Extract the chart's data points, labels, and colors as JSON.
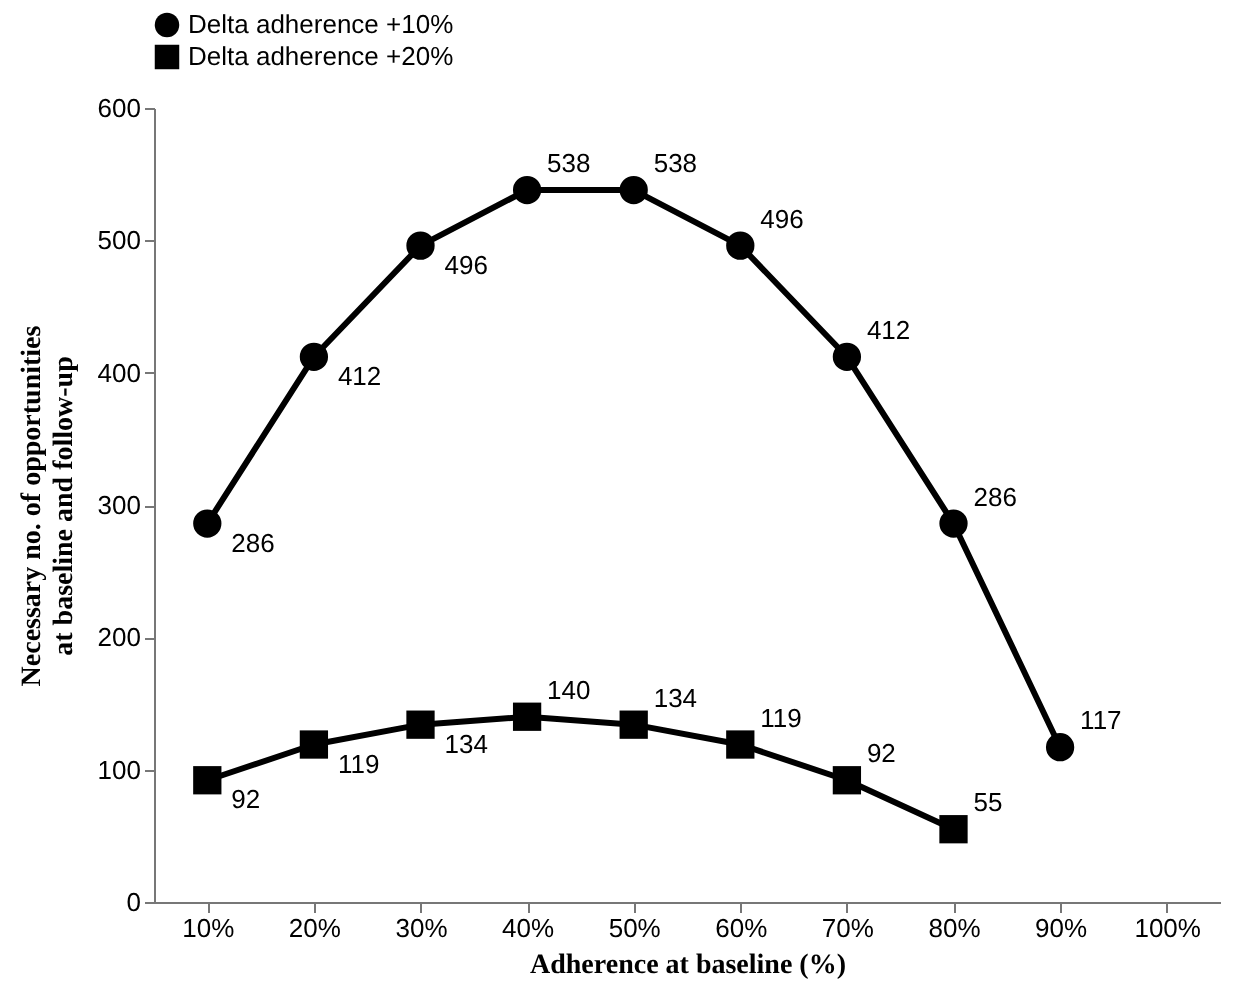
{
  "chart_data": {
    "type": "line",
    "xlabel": "Adherence at baseline (%)",
    "ylabel": "Necessary no. of opportunities\nat baseline and follow-up",
    "categories": [
      "10%",
      "20%",
      "30%",
      "40%",
      "50%",
      "60%",
      "70%",
      "80%",
      "90%",
      "100%"
    ],
    "series": [
      {
        "name": "Delta adherence +10%",
        "color": "#000000",
        "marker": "circle",
        "values": [
          286,
          412,
          496,
          538,
          538,
          496,
          412,
          286,
          117,
          null
        ]
      },
      {
        "name": "Delta adherence +20%",
        "color": "#000000",
        "marker": "square",
        "values": [
          92,
          119,
          134,
          140,
          134,
          119,
          92,
          55,
          null,
          null
        ]
      }
    ],
    "ylim": [
      0,
      600
    ],
    "yticks": [
      0,
      100,
      200,
      300,
      400,
      500,
      600
    ],
    "data_labels": true,
    "legend": "top",
    "grid": false,
    "line_style": "solid"
  }
}
